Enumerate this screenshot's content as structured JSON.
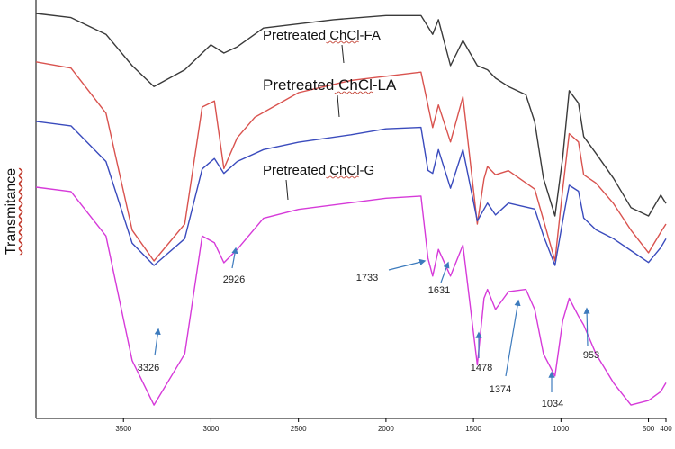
{
  "chart_data": {
    "type": "line",
    "xlabel": "",
    "ylabel": "Transmitance",
    "x_axis": {
      "reversed": true,
      "range": [
        4000,
        400
      ],
      "tick_values": [
        3500,
        3000,
        2500,
        2000,
        1500,
        1000,
        500,
        400
      ],
      "tick_labels": [
        "3500",
        "3000",
        "2500",
        "2000",
        "1500",
        "1000",
        "500",
        "400"
      ]
    },
    "grid": false,
    "y_ticks_shown": false,
    "series": [
      {
        "name": "",
        "color": "#3a3a3a",
        "label_order": 0,
        "points": [
          [
            4000,
            0.03
          ],
          [
            3800,
            0.05
          ],
          [
            3600,
            0.13
          ],
          [
            3450,
            0.28
          ],
          [
            3326,
            0.38
          ],
          [
            3150,
            0.3
          ],
          [
            3000,
            0.18
          ],
          [
            2926,
            0.22
          ],
          [
            2850,
            0.19
          ],
          [
            2700,
            0.1
          ],
          [
            2300,
            0.06
          ],
          [
            2000,
            0.04
          ],
          [
            1800,
            0.04
          ],
          [
            1733,
            0.13
          ],
          [
            1700,
            0.06
          ],
          [
            1631,
            0.28
          ],
          [
            1560,
            0.16
          ],
          [
            1478,
            0.28
          ],
          [
            1420,
            0.3
          ],
          [
            1374,
            0.34
          ],
          [
            1300,
            0.38
          ],
          [
            1200,
            0.42
          ],
          [
            1150,
            0.55
          ],
          [
            1100,
            0.82
          ],
          [
            1034,
            1.0
          ],
          [
            990,
            0.72
          ],
          [
            953,
            0.4
          ],
          [
            900,
            0.46
          ],
          [
            870,
            0.62
          ],
          [
            800,
            0.7
          ],
          [
            700,
            0.82
          ],
          [
            600,
            0.96
          ],
          [
            500,
            1.0
          ],
          [
            430,
            0.9
          ],
          [
            400,
            0.94
          ]
        ]
      },
      {
        "name": "Pretreated ChCl-FA",
        "color": "#d9534f",
        "label_order": 1,
        "points": [
          [
            4000,
            0.03
          ],
          [
            3800,
            0.06
          ],
          [
            3600,
            0.28
          ],
          [
            3450,
            0.85
          ],
          [
            3326,
            1.0
          ],
          [
            3150,
            0.82
          ],
          [
            3050,
            0.25
          ],
          [
            2980,
            0.22
          ],
          [
            2926,
            0.55
          ],
          [
            2850,
            0.4
          ],
          [
            2750,
            0.3
          ],
          [
            2500,
            0.18
          ],
          [
            2200,
            0.12
          ],
          [
            2000,
            0.1
          ],
          [
            1800,
            0.08
          ],
          [
            1733,
            0.35
          ],
          [
            1700,
            0.24
          ],
          [
            1631,
            0.42
          ],
          [
            1560,
            0.2
          ],
          [
            1478,
            0.82
          ],
          [
            1440,
            0.6
          ],
          [
            1420,
            0.54
          ],
          [
            1374,
            0.58
          ],
          [
            1300,
            0.56
          ],
          [
            1150,
            0.65
          ],
          [
            1100,
            0.8
          ],
          [
            1034,
            1.0
          ],
          [
            990,
            0.65
          ],
          [
            953,
            0.38
          ],
          [
            900,
            0.42
          ],
          [
            870,
            0.58
          ],
          [
            800,
            0.62
          ],
          [
            700,
            0.72
          ],
          [
            600,
            0.85
          ],
          [
            500,
            0.96
          ],
          [
            430,
            0.86
          ],
          [
            400,
            0.82
          ]
        ]
      },
      {
        "name": "Pretreated ChCl-LA",
        "color": "#3a4bbd",
        "label_order": 2,
        "points": [
          [
            4000,
            0.03
          ],
          [
            3800,
            0.06
          ],
          [
            3600,
            0.3
          ],
          [
            3450,
            0.85
          ],
          [
            3326,
            1.0
          ],
          [
            3150,
            0.82
          ],
          [
            3050,
            0.35
          ],
          [
            2980,
            0.28
          ],
          [
            2926,
            0.38
          ],
          [
            2850,
            0.3
          ],
          [
            2700,
            0.22
          ],
          [
            2500,
            0.17
          ],
          [
            2200,
            0.12
          ],
          [
            2000,
            0.08
          ],
          [
            1800,
            0.07
          ],
          [
            1760,
            0.36
          ],
          [
            1733,
            0.38
          ],
          [
            1700,
            0.22
          ],
          [
            1631,
            0.48
          ],
          [
            1560,
            0.22
          ],
          [
            1478,
            0.7
          ],
          [
            1420,
            0.58
          ],
          [
            1374,
            0.66
          ],
          [
            1300,
            0.58
          ],
          [
            1150,
            0.62
          ],
          [
            1100,
            0.8
          ],
          [
            1034,
            1.0
          ],
          [
            990,
            0.7
          ],
          [
            953,
            0.46
          ],
          [
            900,
            0.5
          ],
          [
            870,
            0.68
          ],
          [
            800,
            0.76
          ],
          [
            700,
            0.82
          ],
          [
            600,
            0.9
          ],
          [
            500,
            0.98
          ],
          [
            430,
            0.88
          ],
          [
            400,
            0.82
          ]
        ]
      },
      {
        "name": "Pretreated ChCl-G",
        "color": "#d63ad9",
        "label_order": 3,
        "points": [
          [
            4000,
            0.0
          ],
          [
            3800,
            0.02
          ],
          [
            3600,
            0.22
          ],
          [
            3450,
            0.78
          ],
          [
            3326,
            0.98
          ],
          [
            3150,
            0.75
          ],
          [
            3050,
            0.22
          ],
          [
            2980,
            0.25
          ],
          [
            2926,
            0.34
          ],
          [
            2850,
            0.28
          ],
          [
            2700,
            0.14
          ],
          [
            2500,
            0.1
          ],
          [
            2200,
            0.07
          ],
          [
            2000,
            0.05
          ],
          [
            1800,
            0.04
          ],
          [
            1760,
            0.32
          ],
          [
            1733,
            0.4
          ],
          [
            1700,
            0.28
          ],
          [
            1631,
            0.4
          ],
          [
            1560,
            0.26
          ],
          [
            1478,
            0.8
          ],
          [
            1440,
            0.5
          ],
          [
            1420,
            0.46
          ],
          [
            1374,
            0.55
          ],
          [
            1300,
            0.47
          ],
          [
            1200,
            0.46
          ],
          [
            1150,
            0.55
          ],
          [
            1100,
            0.75
          ],
          [
            1034,
            0.85
          ],
          [
            990,
            0.6
          ],
          [
            953,
            0.5
          ],
          [
            900,
            0.58
          ],
          [
            870,
            0.62
          ],
          [
            800,
            0.75
          ],
          [
            700,
            0.88
          ],
          [
            600,
            0.98
          ],
          [
            500,
            0.96
          ],
          [
            430,
            0.92
          ],
          [
            400,
            0.88
          ]
        ]
      }
    ],
    "annotations": [
      {
        "text": "3326",
        "x": 3326,
        "series_index": 3
      },
      {
        "text": "2926",
        "x": 2926,
        "series_index": 3
      },
      {
        "text": "1733",
        "x": 1733,
        "series_index": 3
      },
      {
        "text": "1631",
        "x": 1631,
        "series_index": 3
      },
      {
        "text": "1478",
        "x": 1478,
        "series_index": 3
      },
      {
        "text": "1374",
        "x": 1374,
        "series_index": 3
      },
      {
        "text": "1034",
        "x": 1034,
        "series_index": 3
      },
      {
        "text": "953",
        "x": 953,
        "series_index": 3
      }
    ]
  }
}
